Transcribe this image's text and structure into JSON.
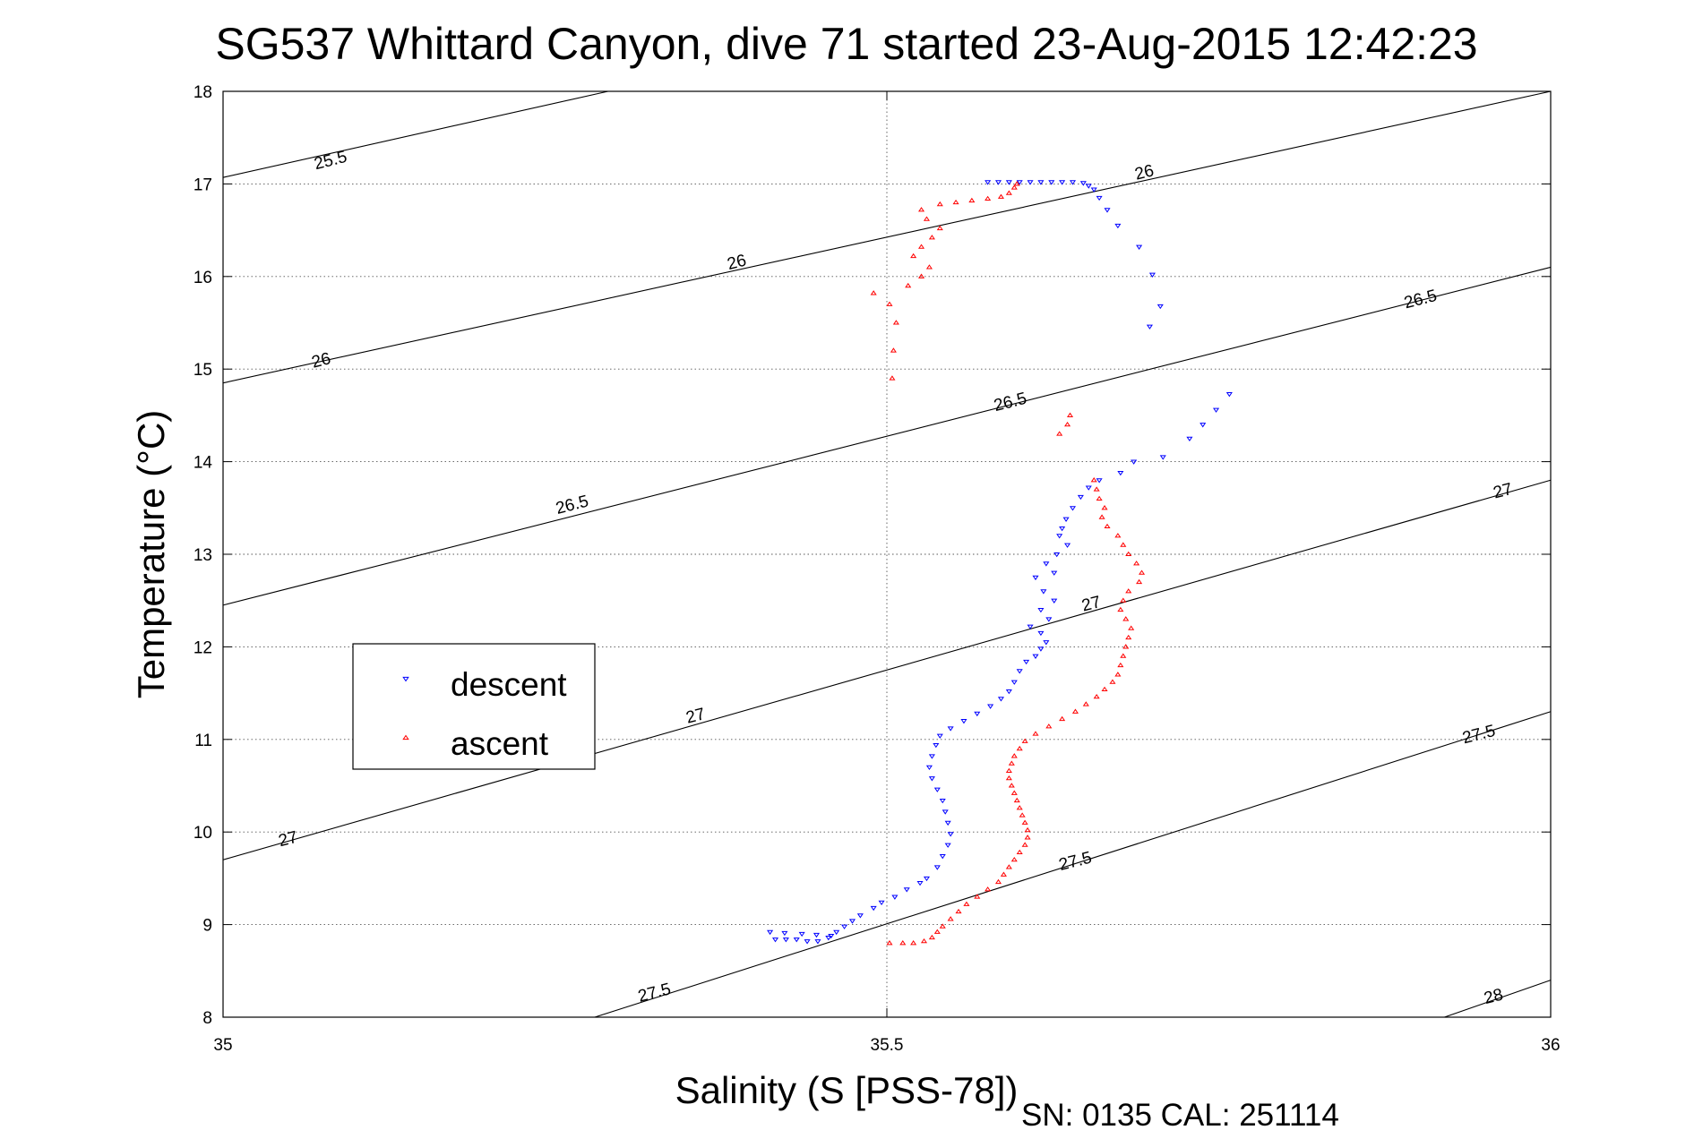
{
  "chart_data": {
    "type": "scatter",
    "title": "SG537 Whittard Canyon, dive 71 started 23-Aug-2015 12:42:23",
    "xlabel": "Salinity (S [PSS-78])",
    "ylabel": "Temperature (°C)",
    "xlim": [
      35,
      36
    ],
    "ylim": [
      8,
      18
    ],
    "xticks": [
      "35",
      "35.5",
      "36"
    ],
    "yticks": [
      "8",
      "9",
      "10",
      "11",
      "12",
      "13",
      "14",
      "15",
      "16",
      "17",
      "18"
    ],
    "grid": "dotted",
    "legend_position": "left",
    "footer": "SN: 0135  CAL: 251114",
    "contours": [
      {
        "label": "25.5",
        "x": [
          35.0,
          35.29
        ],
        "y": [
          17.07,
          18.0
        ]
      },
      {
        "label": "26",
        "x": [
          35.0,
          36.0
        ],
        "y": [
          14.85,
          18.0
        ]
      },
      {
        "label": "26.5",
        "x": [
          35.0,
          36.0
        ],
        "y": [
          12.45,
          16.1
        ]
      },
      {
        "label": "27",
        "x": [
          35.0,
          36.0
        ],
        "y": [
          9.7,
          13.8
        ]
      },
      {
        "label": "27.5",
        "x": [
          35.28,
          36.0
        ],
        "y": [
          8.0,
          11.3
        ]
      },
      {
        "label": "28",
        "x": [
          35.92,
          36.0
        ],
        "y": [
          8.0,
          8.4
        ]
      }
    ],
    "contour_labels": [
      {
        "text": "25.5",
        "x": 35.081,
        "y": 17.25
      },
      {
        "text": "26",
        "x": 35.387,
        "y": 16.15
      },
      {
        "text": "26",
        "x": 35.074,
        "y": 15.09
      },
      {
        "text": "26.5",
        "x": 35.263,
        "y": 13.53
      },
      {
        "text": "27",
        "x": 35.356,
        "y": 11.25
      },
      {
        "text": "27",
        "x": 35.049,
        "y": 9.92
      },
      {
        "text": "26.5",
        "x": 35.593,
        "y": 14.64
      },
      {
        "text": "27.5",
        "x": 35.325,
        "y": 8.26
      },
      {
        "text": "27.5",
        "x": 35.642,
        "y": 9.68
      },
      {
        "text": "26",
        "x": 35.694,
        "y": 17.12
      },
      {
        "text": "26.5",
        "x": 35.902,
        "y": 15.75
      },
      {
        "text": "27",
        "x": 35.654,
        "y": 12.46
      },
      {
        "text": "27",
        "x": 35.964,
        "y": 13.68
      },
      {
        "text": "27.5",
        "x": 35.946,
        "y": 11.05
      },
      {
        "text": "28",
        "x": 35.957,
        "y": 8.22
      }
    ],
    "series": [
      {
        "name": "descent",
        "color": "#0000ff",
        "marker": "triangle-down",
        "points": [
          [
            35.576,
            17.02
          ],
          [
            35.584,
            17.02
          ],
          [
            35.592,
            17.02
          ],
          [
            35.6,
            17.02
          ],
          [
            35.608,
            17.02
          ],
          [
            35.616,
            17.02
          ],
          [
            35.624,
            17.02
          ],
          [
            35.632,
            17.02
          ],
          [
            35.64,
            17.02
          ],
          [
            35.648,
            17.01
          ],
          [
            35.652,
            16.98
          ],
          [
            35.656,
            16.94
          ],
          [
            35.66,
            16.85
          ],
          [
            35.666,
            16.72
          ],
          [
            35.674,
            16.55
          ],
          [
            35.69,
            16.32
          ],
          [
            35.7,
            16.02
          ],
          [
            35.706,
            15.68
          ],
          [
            35.698,
            15.46
          ],
          [
            35.758,
            14.73
          ],
          [
            35.748,
            14.56
          ],
          [
            35.738,
            14.4
          ],
          [
            35.728,
            14.25
          ],
          [
            35.708,
            14.05
          ],
          [
            35.686,
            14.0
          ],
          [
            35.676,
            13.88
          ],
          [
            35.66,
            13.8
          ],
          [
            35.652,
            13.72
          ],
          [
            35.646,
            13.62
          ],
          [
            35.64,
            13.5
          ],
          [
            35.635,
            13.38
          ],
          [
            35.632,
            13.28
          ],
          [
            35.63,
            13.2
          ],
          [
            35.636,
            13.1
          ],
          [
            35.628,
            13.0
          ],
          [
            35.62,
            12.9
          ],
          [
            35.626,
            12.8
          ],
          [
            35.612,
            12.75
          ],
          [
            35.618,
            12.6
          ],
          [
            35.626,
            12.5
          ],
          [
            35.616,
            12.4
          ],
          [
            35.622,
            12.3
          ],
          [
            35.608,
            12.22
          ],
          [
            35.616,
            12.15
          ],
          [
            35.62,
            12.05
          ],
          [
            35.616,
            11.98
          ],
          [
            35.612,
            11.9
          ],
          [
            35.605,
            11.84
          ],
          [
            35.6,
            11.74
          ],
          [
            35.596,
            11.62
          ],
          [
            35.592,
            11.52
          ],
          [
            35.586,
            11.44
          ],
          [
            35.578,
            11.36
          ],
          [
            35.568,
            11.28
          ],
          [
            35.558,
            11.2
          ],
          [
            35.548,
            11.12
          ],
          [
            35.54,
            11.04
          ],
          [
            35.537,
            10.94
          ],
          [
            35.534,
            10.82
          ],
          [
            35.532,
            10.7
          ],
          [
            35.534,
            10.58
          ],
          [
            35.538,
            10.46
          ],
          [
            35.542,
            10.34
          ],
          [
            35.544,
            10.22
          ],
          [
            35.546,
            10.1
          ],
          [
            35.548,
            9.98
          ],
          [
            35.546,
            9.86
          ],
          [
            35.542,
            9.74
          ],
          [
            35.538,
            9.62
          ],
          [
            35.53,
            9.5
          ],
          [
            35.525,
            9.45
          ],
          [
            35.515,
            9.38
          ],
          [
            35.506,
            9.3
          ],
          [
            35.496,
            9.24
          ],
          [
            35.49,
            9.18
          ],
          [
            35.48,
            9.1
          ],
          [
            35.474,
            9.04
          ],
          [
            35.468,
            8.98
          ],
          [
            35.462,
            8.92
          ],
          [
            35.456,
            8.86
          ],
          [
            35.448,
            8.82
          ],
          [
            35.44,
            8.82
          ],
          [
            35.432,
            8.84
          ],
          [
            35.424,
            8.84
          ],
          [
            35.416,
            8.84
          ],
          [
            35.412,
            8.92
          ],
          [
            35.423,
            8.91
          ],
          [
            35.436,
            8.9
          ],
          [
            35.447,
            8.89
          ],
          [
            35.458,
            8.88
          ]
        ]
      },
      {
        "name": "ascent",
        "color": "#ff0000",
        "marker": "triangle-up",
        "points": [
          [
            35.502,
            8.8
          ],
          [
            35.512,
            8.8
          ],
          [
            35.52,
            8.8
          ],
          [
            35.528,
            8.82
          ],
          [
            35.534,
            8.86
          ],
          [
            35.538,
            8.92
          ],
          [
            35.542,
            8.98
          ],
          [
            35.548,
            9.06
          ],
          [
            35.554,
            9.14
          ],
          [
            35.56,
            9.22
          ],
          [
            35.568,
            9.3
          ],
          [
            35.576,
            9.38
          ],
          [
            35.584,
            9.46
          ],
          [
            35.588,
            9.54
          ],
          [
            35.592,
            9.62
          ],
          [
            35.596,
            9.7
          ],
          [
            35.6,
            9.78
          ],
          [
            35.604,
            9.86
          ],
          [
            35.606,
            9.94
          ],
          [
            35.606,
            10.02
          ],
          [
            35.604,
            10.1
          ],
          [
            35.602,
            10.18
          ],
          [
            35.6,
            10.26
          ],
          [
            35.598,
            10.34
          ],
          [
            35.596,
            10.42
          ],
          [
            35.594,
            10.5
          ],
          [
            35.592,
            10.58
          ],
          [
            35.592,
            10.66
          ],
          [
            35.594,
            10.74
          ],
          [
            35.596,
            10.82
          ],
          [
            35.6,
            10.9
          ],
          [
            35.604,
            10.98
          ],
          [
            35.612,
            11.06
          ],
          [
            35.622,
            11.14
          ],
          [
            35.632,
            11.22
          ],
          [
            35.642,
            11.3
          ],
          [
            35.65,
            11.38
          ],
          [
            35.658,
            11.46
          ],
          [
            35.664,
            11.54
          ],
          [
            35.67,
            11.62
          ],
          [
            35.674,
            11.7
          ],
          [
            35.676,
            11.8
          ],
          [
            35.678,
            11.9
          ],
          [
            35.68,
            12.0
          ],
          [
            35.682,
            12.1
          ],
          [
            35.684,
            12.2
          ],
          [
            35.68,
            12.3
          ],
          [
            35.676,
            12.4
          ],
          [
            35.678,
            12.5
          ],
          [
            35.682,
            12.6
          ],
          [
            35.69,
            12.7
          ],
          [
            35.692,
            12.8
          ],
          [
            35.688,
            12.9
          ],
          [
            35.682,
            13.0
          ],
          [
            35.678,
            13.1
          ],
          [
            35.674,
            13.2
          ],
          [
            35.666,
            13.3
          ],
          [
            35.662,
            13.4
          ],
          [
            35.664,
            13.5
          ],
          [
            35.66,
            13.6
          ],
          [
            35.658,
            13.7
          ],
          [
            35.656,
            13.8
          ],
          [
            35.63,
            14.3
          ],
          [
            35.636,
            14.4
          ],
          [
            35.638,
            14.5
          ],
          [
            35.504,
            14.9
          ],
          [
            35.505,
            15.2
          ],
          [
            35.507,
            15.5
          ],
          [
            35.502,
            15.7
          ],
          [
            35.49,
            15.82
          ],
          [
            35.516,
            15.9
          ],
          [
            35.526,
            16.0
          ],
          [
            35.532,
            16.1
          ],
          [
            35.52,
            16.22
          ],
          [
            35.526,
            16.32
          ],
          [
            35.534,
            16.42
          ],
          [
            35.54,
            16.52
          ],
          [
            35.53,
            16.62
          ],
          [
            35.526,
            16.72
          ],
          [
            35.54,
            16.78
          ],
          [
            35.552,
            16.8
          ],
          [
            35.564,
            16.82
          ],
          [
            35.576,
            16.84
          ],
          [
            35.586,
            16.86
          ],
          [
            35.592,
            16.9
          ],
          [
            35.596,
            16.96
          ],
          [
            35.598,
            17.0
          ]
        ]
      }
    ]
  }
}
